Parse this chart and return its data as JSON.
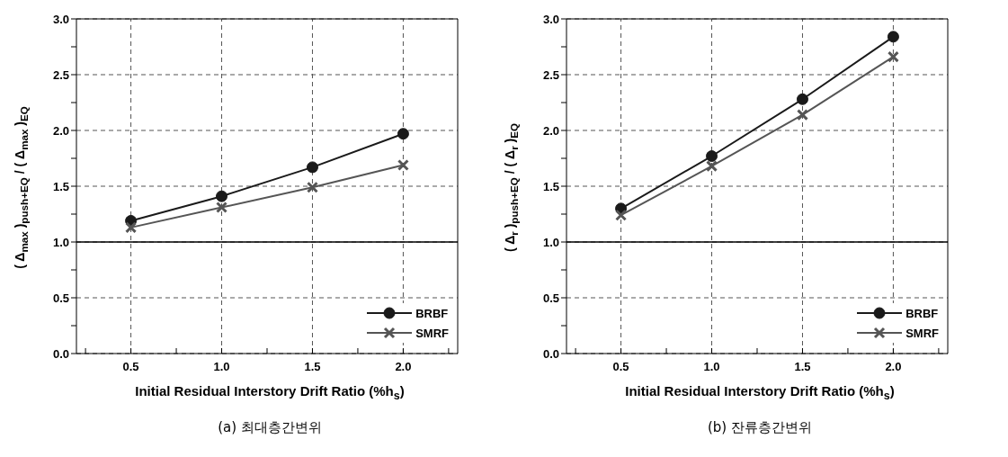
{
  "chart_data": [
    {
      "type": "line",
      "title": "(a) 최대층간변위",
      "xlabel": "Initial Residual Interstory Drift Ratio (%h$_{s}$)",
      "ylabel": "( Δ$_{max}$ )$_{push+EQ}$ / ( Δ$_{max}$ )$_{EQ}$",
      "x": [
        0.5,
        1.0,
        1.5,
        2.0
      ],
      "series": [
        {
          "name": "BRBF",
          "color": "#1a1a1a",
          "marker": "circle",
          "values": [
            1.19,
            1.41,
            1.67,
            1.97
          ]
        },
        {
          "name": "SMRF",
          "color": "#555555",
          "marker": "cross",
          "values": [
            1.13,
            1.31,
            1.49,
            1.69
          ]
        }
      ],
      "xlim": [
        0.2,
        2.3
      ],
      "xticks": [
        {
          "value": 0.25,
          "label": null
        },
        {
          "value": 0.5,
          "label": "0.5"
        },
        {
          "value": 0.75,
          "label": null
        },
        {
          "value": 1.0,
          "label": "1.0"
        },
        {
          "value": 1.25,
          "label": null
        },
        {
          "value": 1.5,
          "label": "1.5"
        },
        {
          "value": 1.75,
          "label": null
        },
        {
          "value": 2.0,
          "label": "2.0"
        },
        {
          "value": 2.25,
          "label": null
        }
      ],
      "ylim": [
        0,
        3
      ],
      "yticks": [
        {
          "value": 0,
          "label": "0.0"
        },
        {
          "value": 0.25,
          "label": null
        },
        {
          "value": 0.5,
          "label": "0.5"
        },
        {
          "value": 0.75,
          "label": null
        },
        {
          "value": 1,
          "label": "1.0"
        },
        {
          "value": 1.25,
          "label": null
        },
        {
          "value": 1.5,
          "label": "1.5"
        },
        {
          "value": 1.75,
          "label": null
        },
        {
          "value": 2,
          "label": "2.0"
        },
        {
          "value": 2.25,
          "label": null
        },
        {
          "value": 2.5,
          "label": "2.5"
        },
        {
          "value": 2.75,
          "label": null
        },
        {
          "value": 3,
          "label": "3.0"
        }
      ],
      "ref_lines": [
        {
          "axis": "y",
          "value": 1,
          "color": "#000000",
          "line_style": "solid"
        }
      ],
      "grid": true,
      "legend": "bottom right",
      "line_style": "solid"
    },
    {
      "type": "line",
      "title": "(b) 잔류층간변위",
      "xlabel": "Initial Residual Interstory Drift Ratio (%h$_{s}$)",
      "ylabel": "( Δ$_{r}$ )$_{push+EQ}$ / ( Δ$_{r}$ )$_{EQ}$",
      "x": [
        0.5,
        1.0,
        1.5,
        2.0
      ],
      "series": [
        {
          "name": "BRBF",
          "color": "#1a1a1a",
          "marker": "circle",
          "values": [
            1.3,
            1.77,
            2.28,
            2.84
          ]
        },
        {
          "name": "SMRF",
          "color": "#555555",
          "marker": "cross",
          "values": [
            1.24,
            1.68,
            2.14,
            2.66
          ]
        }
      ],
      "xlim": [
        0.2,
        2.3
      ],
      "xticks": [
        {
          "value": 0.25,
          "label": null
        },
        {
          "value": 0.5,
          "label": "0.5"
        },
        {
          "value": 0.75,
          "label": null
        },
        {
          "value": 1.0,
          "label": "1.0"
        },
        {
          "value": 1.25,
          "label": null
        },
        {
          "value": 1.5,
          "label": "1.5"
        },
        {
          "value": 1.75,
          "label": null
        },
        {
          "value": 2.0,
          "label": "2.0"
        },
        {
          "value": 2.25,
          "label": null
        }
      ],
      "ylim": [
        0,
        3
      ],
      "yticks": [
        {
          "value": 0,
          "label": "0.0"
        },
        {
          "value": 0.25,
          "label": null
        },
        {
          "value": 0.5,
          "label": "0.5"
        },
        {
          "value": 0.75,
          "label": null
        },
        {
          "value": 1,
          "label": "1.0"
        },
        {
          "value": 1.25,
          "label": null
        },
        {
          "value": 1.5,
          "label": "1.5"
        },
        {
          "value": 1.75,
          "label": null
        },
        {
          "value": 2,
          "label": "2.0"
        },
        {
          "value": 2.25,
          "label": null
        },
        {
          "value": 2.5,
          "label": "2.5"
        },
        {
          "value": 2.75,
          "label": null
        },
        {
          "value": 3,
          "label": "3.0"
        }
      ],
      "ref_lines": [
        {
          "axis": "y",
          "value": 1,
          "color": "#000000",
          "line_style": "solid"
        }
      ],
      "grid": true,
      "legend": "bottom right",
      "line_style": "solid"
    }
  ]
}
